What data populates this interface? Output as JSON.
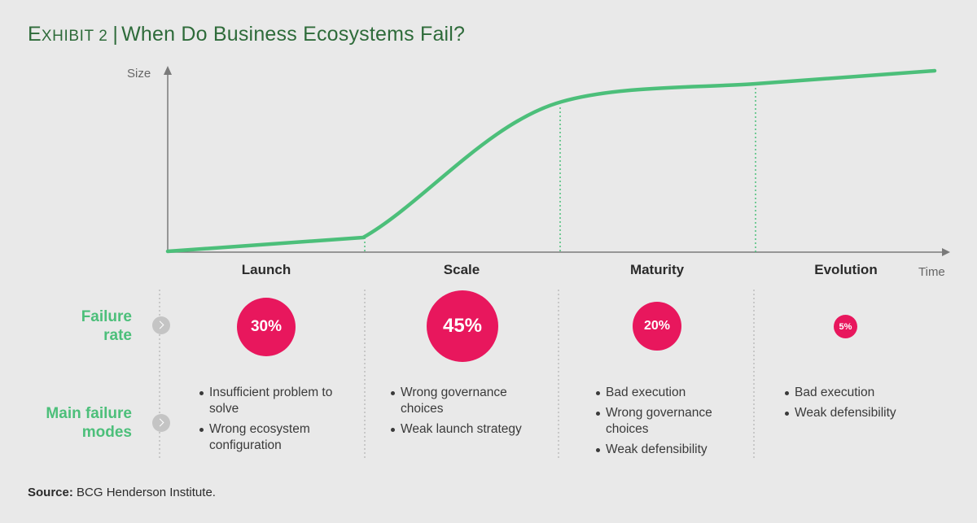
{
  "title": {
    "exhibit_first": "E",
    "exhibit_rest": "xhibit 2",
    "separator": "|",
    "text": "When Do Business Ecosystems Fail?"
  },
  "axes": {
    "y_label": "Size",
    "x_label": "Time"
  },
  "phases": [
    {
      "name": "Launch",
      "failure_rate": "30%",
      "failure_rate_value": 30,
      "modes": [
        "Insufficient problem to solve",
        "Wrong ecosystem configuration"
      ]
    },
    {
      "name": "Scale",
      "failure_rate": "45%",
      "failure_rate_value": 45,
      "modes": [
        "Wrong governance choices",
        "Weak launch strategy"
      ]
    },
    {
      "name": "Maturity",
      "failure_rate": "20%",
      "failure_rate_value": 20,
      "modes": [
        "Bad execution",
        "Wrong governance choices",
        "Weak defensibility"
      ]
    },
    {
      "name": "Evolution",
      "failure_rate": "5%",
      "failure_rate_value": 5,
      "modes": [
        "Bad execution",
        "Weak defensibility"
      ]
    }
  ],
  "row_labels": {
    "failure_rate": [
      "Failure",
      "rate"
    ],
    "failure_modes": [
      "Main failure",
      "modes"
    ]
  },
  "source": {
    "label": "Source:",
    "text": "BCG Henderson Institute."
  },
  "colors": {
    "curve": "#4cbf7a",
    "circle": "#e8175d",
    "title": "#2e6b3a",
    "background": "#e9e9e9"
  },
  "icons": {
    "row_arrow": "chevron-right-icon"
  }
}
